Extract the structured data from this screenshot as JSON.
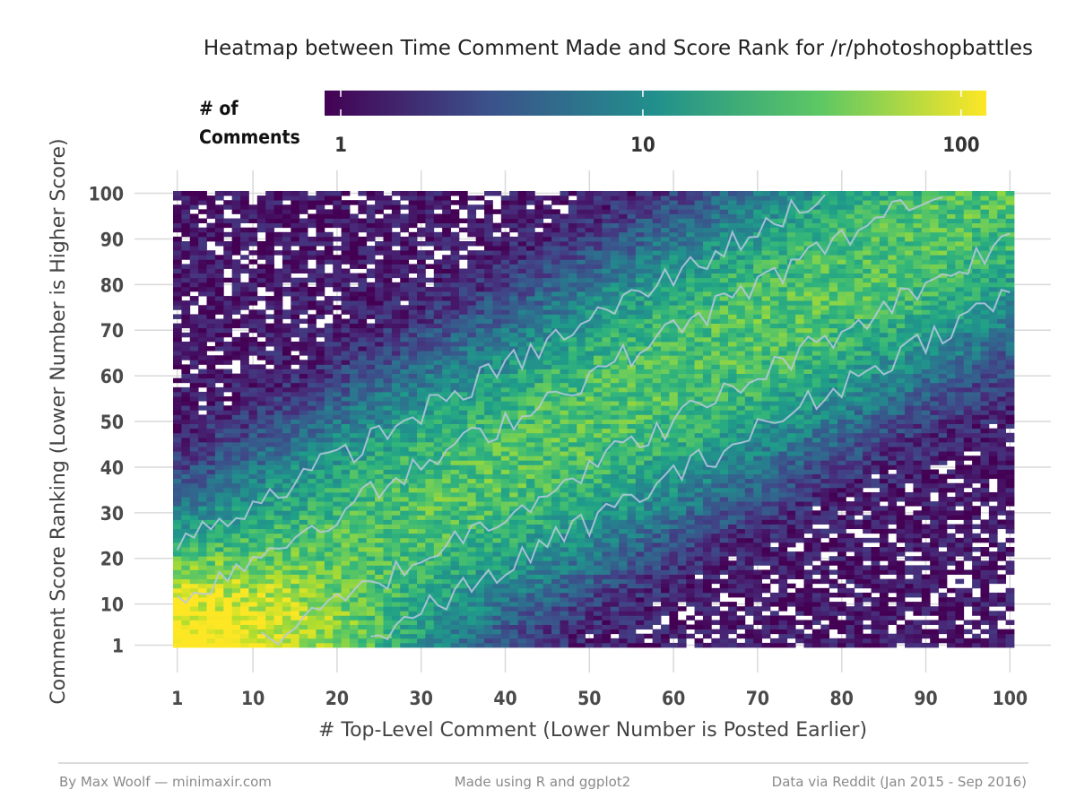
{
  "chart_data": {
    "type": "heatmap",
    "title": "Heatmap between Time Comment Made and Score Rank for /r/photoshopbattles",
    "xlabel": "# Top-Level Comment (Lower Number is Posted Earlier)",
    "ylabel": "Comment Score Ranking (Lower Number is Higher Score)",
    "x_ticks": [
      "1",
      "10",
      "20",
      "30",
      "40",
      "50",
      "60",
      "70",
      "80",
      "90",
      "100"
    ],
    "y_ticks": [
      "1",
      "10",
      "20",
      "30",
      "40",
      "50",
      "60",
      "70",
      "80",
      "90",
      "100"
    ],
    "xlim": [
      1,
      100
    ],
    "ylim": [
      1,
      100
    ],
    "legend": {
      "title_line1": "# of",
      "title_line2": "Comments",
      "ticks": [
        "1",
        "10",
        "100"
      ],
      "scale": "log10",
      "range": [
        1,
        120
      ],
      "placement": "top"
    },
    "color_scale": "viridis",
    "colors": [
      "#440154",
      "#3b528b",
      "#21908c",
      "#5dc863",
      "#fde725"
    ],
    "pattern": {
      "description_of_density": "highest density at x≈1-10, y≈1-10 (~100+); bright diagonal band along x≈y (~20-40); sparse off-diagonal (~1-3)",
      "diagonal_peak_count": 30,
      "corner_peak_count": 120,
      "off_diagonal_count": 2
    },
    "contours": true,
    "grid": true
  },
  "footer": {
    "left": "By Max Woolf — minimaxir.com",
    "center": "Made using R and ggplot2",
    "right": "Data via Reddit (Jan 2015 - Sep 2016)"
  }
}
